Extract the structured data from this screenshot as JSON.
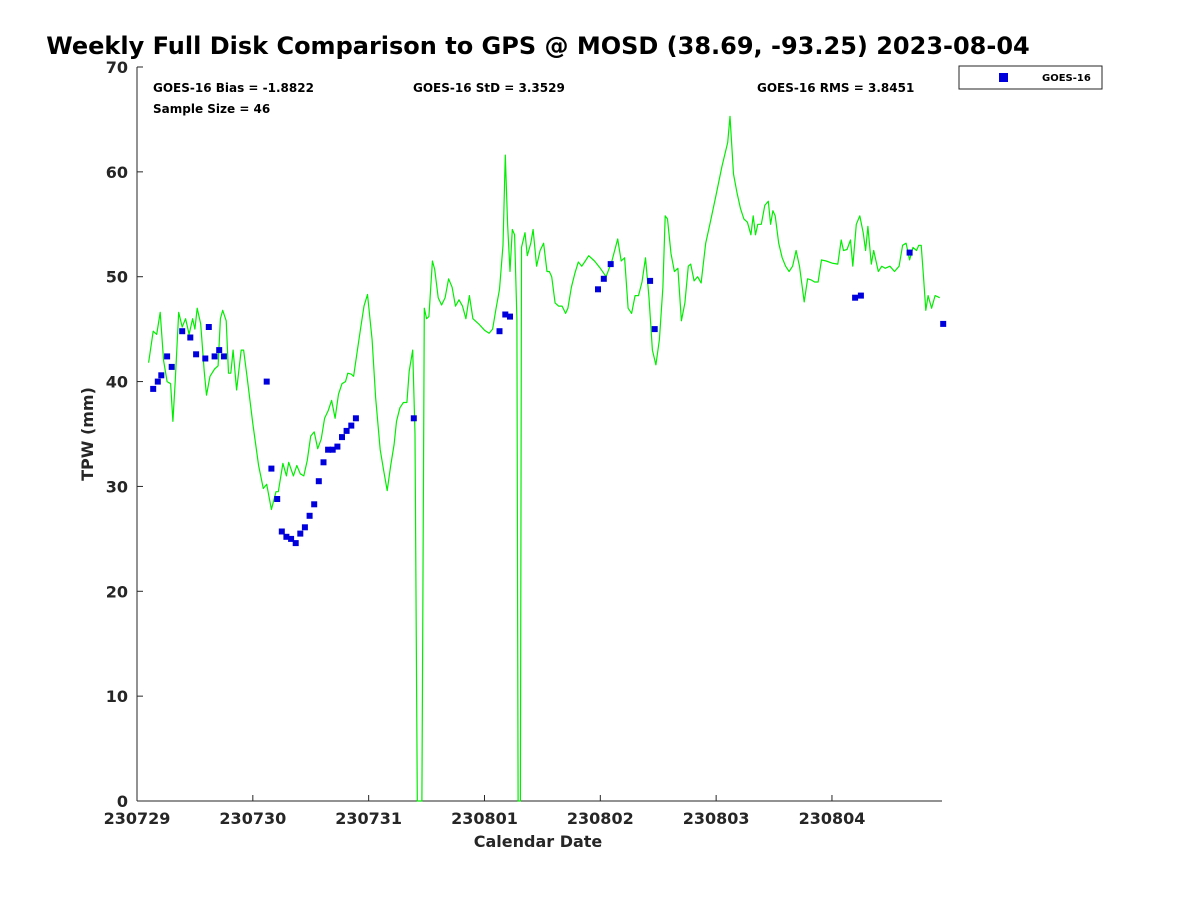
{
  "chart_data": {
    "type": "line+scatter",
    "title": "Weekly Full Disk Comparison to GPS @ MOSD (38.69, -93.25) 2023-08-04",
    "xlabel": "Calendar Date",
    "ylabel": "TPW (mm)",
    "xlim": [
      0,
      6.95
    ],
    "ylim": [
      0,
      70
    ],
    "x_ticks": [
      0,
      1,
      2,
      3,
      4,
      5,
      6
    ],
    "x_tick_labels": [
      "230729",
      "230730",
      "230731",
      "230801",
      "230802",
      "230803",
      "230804"
    ],
    "y_ticks": [
      0,
      10,
      20,
      30,
      40,
      50,
      60,
      70
    ],
    "y_tick_labels": [
      "0",
      "10",
      "20",
      "30",
      "40",
      "50",
      "60",
      "70"
    ],
    "grid": false,
    "legend": {
      "position": "top-right-outside",
      "entries": [
        "GOES-16"
      ]
    },
    "stats": {
      "bias": "GOES-16 Bias = -1.8822",
      "std": "GOES-16 StD = 3.3529",
      "rms": "GOES-16 RMS = 3.8451",
      "sample": "Sample Size = 46"
    },
    "series": [
      {
        "name": "GPS",
        "kind": "line",
        "color": "#00ee00",
        "points": [
          [
            0.1,
            41.8
          ],
          [
            0.14,
            44.8
          ],
          [
            0.17,
            44.5
          ],
          [
            0.2,
            46.6
          ],
          [
            0.23,
            42
          ],
          [
            0.26,
            40
          ],
          [
            0.29,
            39.8
          ],
          [
            0.31,
            36.2
          ],
          [
            0.33,
            40
          ],
          [
            0.36,
            46.6
          ],
          [
            0.39,
            45.2
          ],
          [
            0.42,
            46
          ],
          [
            0.45,
            44.5
          ],
          [
            0.48,
            46
          ],
          [
            0.5,
            45
          ],
          [
            0.52,
            47
          ],
          [
            0.55,
            45.5
          ],
          [
            0.58,
            41
          ],
          [
            0.6,
            38.7
          ],
          [
            0.63,
            40.5
          ],
          [
            0.67,
            41.2
          ],
          [
            0.7,
            41.5
          ],
          [
            0.72,
            46
          ],
          [
            0.74,
            46.8
          ],
          [
            0.77,
            45.8
          ],
          [
            0.79,
            40.8
          ],
          [
            0.81,
            40.8
          ],
          [
            0.83,
            43
          ],
          [
            0.86,
            39.2
          ],
          [
            0.9,
            43
          ],
          [
            0.92,
            43
          ],
          [
            0.95,
            40.5
          ],
          [
            1.0,
            36
          ],
          [
            1.05,
            32
          ],
          [
            1.09,
            29.8
          ],
          [
            1.12,
            30.2
          ],
          [
            1.16,
            27.8
          ],
          [
            1.2,
            29.5
          ],
          [
            1.22,
            29.5
          ],
          [
            1.26,
            32.2
          ],
          [
            1.29,
            31
          ],
          [
            1.31,
            32.3
          ],
          [
            1.35,
            31
          ],
          [
            1.38,
            32
          ],
          [
            1.41,
            31.2
          ],
          [
            1.44,
            31
          ],
          [
            1.47,
            32.5
          ],
          [
            1.5,
            34.8
          ],
          [
            1.53,
            35.2
          ],
          [
            1.56,
            33.6
          ],
          [
            1.59,
            34.5
          ],
          [
            1.62,
            36.5
          ],
          [
            1.65,
            37.2
          ],
          [
            1.68,
            38.2
          ],
          [
            1.71,
            36.5
          ],
          [
            1.74,
            38.8
          ],
          [
            1.77,
            39.8
          ],
          [
            1.8,
            40
          ],
          [
            1.82,
            40.8
          ],
          [
            1.85,
            40.7
          ],
          [
            1.87,
            40.5
          ],
          [
            1.9,
            42.8
          ],
          [
            1.93,
            45
          ],
          [
            1.96,
            47.2
          ],
          [
            1.99,
            48.3
          ],
          [
            2.03,
            44
          ],
          [
            2.06,
            38.5
          ],
          [
            2.1,
            33.5
          ],
          [
            2.13,
            31.5
          ],
          [
            2.16,
            29.6
          ],
          [
            2.19,
            32
          ],
          [
            2.22,
            34
          ],
          [
            2.24,
            36.2
          ],
          [
            2.27,
            37.5
          ],
          [
            2.3,
            38
          ],
          [
            2.33,
            38
          ],
          [
            2.35,
            41
          ],
          [
            2.38,
            43
          ],
          [
            2.4,
            35
          ],
          [
            2.42,
            0
          ],
          [
            2.46,
            0
          ],
          [
            2.48,
            47
          ],
          [
            2.5,
            46
          ],
          [
            2.52,
            46.2
          ],
          [
            2.55,
            51.5
          ],
          [
            2.57,
            50.7
          ],
          [
            2.6,
            48
          ],
          [
            2.63,
            47.3
          ],
          [
            2.66,
            48
          ],
          [
            2.69,
            49.8
          ],
          [
            2.72,
            49
          ],
          [
            2.75,
            47.2
          ],
          [
            2.78,
            47.8
          ],
          [
            2.81,
            47.2
          ],
          [
            2.84,
            46
          ],
          [
            2.87,
            48.2
          ],
          [
            2.9,
            46
          ],
          [
            2.95,
            45.5
          ],
          [
            3.0,
            44.9
          ],
          [
            3.04,
            44.6
          ],
          [
            3.07,
            45
          ],
          [
            3.1,
            47
          ],
          [
            3.13,
            48.8
          ],
          [
            3.16,
            53
          ],
          [
            3.18,
            61.6
          ],
          [
            3.2,
            55
          ],
          [
            3.22,
            50.5
          ],
          [
            3.24,
            54.5
          ],
          [
            3.26,
            54
          ],
          [
            3.28,
            46
          ],
          [
            3.29,
            0
          ],
          [
            3.31,
            0
          ],
          [
            3.32,
            52.8
          ],
          [
            3.35,
            54.2
          ],
          [
            3.37,
            52
          ],
          [
            3.4,
            53.2
          ],
          [
            3.42,
            54.5
          ],
          [
            3.45,
            51
          ],
          [
            3.48,
            52.5
          ],
          [
            3.51,
            53.2
          ],
          [
            3.54,
            50.5
          ],
          [
            3.56,
            50.5
          ],
          [
            3.58,
            50
          ],
          [
            3.61,
            47.5
          ],
          [
            3.64,
            47.2
          ],
          [
            3.67,
            47.2
          ],
          [
            3.7,
            46.5
          ],
          [
            3.72,
            47
          ],
          [
            3.75,
            49
          ],
          [
            3.78,
            50.3
          ],
          [
            3.81,
            51.4
          ],
          [
            3.84,
            51
          ],
          [
            3.87,
            51.5
          ],
          [
            3.9,
            52
          ],
          [
            3.95,
            51.5
          ],
          [
            4.0,
            50.8
          ],
          [
            4.05,
            50
          ],
          [
            4.1,
            51.5
          ],
          [
            4.15,
            53.6
          ],
          [
            4.18,
            51.5
          ],
          [
            4.21,
            51.8
          ],
          [
            4.24,
            47
          ],
          [
            4.27,
            46.5
          ],
          [
            4.3,
            48.2
          ],
          [
            4.33,
            48.2
          ],
          [
            4.36,
            49.5
          ],
          [
            4.39,
            51.8
          ],
          [
            4.42,
            48
          ],
          [
            4.45,
            43
          ],
          [
            4.48,
            41.6
          ],
          [
            4.51,
            44
          ],
          [
            4.54,
            49
          ],
          [
            4.56,
            55.8
          ],
          [
            4.58,
            55.5
          ],
          [
            4.61,
            52.2
          ],
          [
            4.64,
            50.5
          ],
          [
            4.67,
            50.8
          ],
          [
            4.7,
            45.8
          ],
          [
            4.73,
            47.5
          ],
          [
            4.76,
            51
          ],
          [
            4.78,
            51.2
          ],
          [
            4.81,
            49.6
          ],
          [
            4.84,
            50
          ],
          [
            4.87,
            49.4
          ],
          [
            4.91,
            53.2
          ],
          [
            4.95,
            55.2
          ],
          [
            5.0,
            57.8
          ],
          [
            5.05,
            60.5
          ],
          [
            5.1,
            62.8
          ],
          [
            5.12,
            65.3
          ],
          [
            5.15,
            59.8
          ],
          [
            5.18,
            58
          ],
          [
            5.21,
            56.5
          ],
          [
            5.24,
            55.5
          ],
          [
            5.27,
            55.2
          ],
          [
            5.3,
            54
          ],
          [
            5.32,
            55.8
          ],
          [
            5.34,
            54
          ],
          [
            5.36,
            55
          ],
          [
            5.39,
            55
          ],
          [
            5.42,
            56.8
          ],
          [
            5.45,
            57.2
          ],
          [
            5.47,
            55
          ],
          [
            5.49,
            56.3
          ],
          [
            5.51,
            55.8
          ],
          [
            5.54,
            53.2
          ],
          [
            5.57,
            51.8
          ],
          [
            5.6,
            51
          ],
          [
            5.63,
            50.5
          ],
          [
            5.66,
            51
          ],
          [
            5.69,
            52.5
          ],
          [
            5.72,
            51
          ],
          [
            5.76,
            47.6
          ],
          [
            5.79,
            49.8
          ],
          [
            5.82,
            49.7
          ],
          [
            5.85,
            49.5
          ],
          [
            5.88,
            49.5
          ],
          [
            5.91,
            51.6
          ],
          [
            5.95,
            51.5
          ],
          [
            6.0,
            51.3
          ],
          [
            6.05,
            51.2
          ],
          [
            6.08,
            53.5
          ],
          [
            6.1,
            52.5
          ],
          [
            6.13,
            52.6
          ],
          [
            6.16,
            53.5
          ],
          [
            6.18,
            51
          ],
          [
            6.21,
            55
          ],
          [
            6.24,
            55.8
          ],
          [
            6.27,
            54.2
          ],
          [
            6.29,
            52.5
          ],
          [
            6.31,
            54.8
          ],
          [
            6.34,
            51.2
          ],
          [
            6.36,
            52.5
          ],
          [
            6.38,
            51.5
          ],
          [
            6.4,
            50.5
          ],
          [
            6.43,
            51
          ],
          [
            6.46,
            50.8
          ],
          [
            6.5,
            51
          ],
          [
            6.54,
            50.5
          ],
          [
            6.58,
            51
          ],
          [
            6.61,
            53
          ],
          [
            6.64,
            53.2
          ],
          [
            6.67,
            51.6
          ],
          [
            6.7,
            52.8
          ],
          [
            6.73,
            52.5
          ],
          [
            6.75,
            53
          ],
          [
            6.77,
            53
          ],
          [
            6.79,
            50
          ],
          [
            6.81,
            46.8
          ],
          [
            6.83,
            48.2
          ],
          [
            6.86,
            47
          ],
          [
            6.89,
            48.2
          ],
          [
            6.93,
            48
          ]
        ]
      },
      {
        "name": "GOES-16",
        "kind": "scatter",
        "color": "#0000dd",
        "points": [
          [
            0.14,
            39.3
          ],
          [
            0.18,
            40
          ],
          [
            0.21,
            40.6
          ],
          [
            0.26,
            42.4
          ],
          [
            0.3,
            41.4
          ],
          [
            0.39,
            44.8
          ],
          [
            0.46,
            44.2
          ],
          [
            0.51,
            42.6
          ],
          [
            0.59,
            42.2
          ],
          [
            0.62,
            45.2
          ],
          [
            0.67,
            42.4
          ],
          [
            0.71,
            43
          ],
          [
            0.75,
            42.4
          ],
          [
            1.12,
            40
          ],
          [
            1.16,
            31.7
          ],
          [
            1.21,
            28.8
          ],
          [
            1.25,
            25.7
          ],
          [
            1.29,
            25.2
          ],
          [
            1.33,
            25
          ],
          [
            1.37,
            24.6
          ],
          [
            1.41,
            25.5
          ],
          [
            1.45,
            26.1
          ],
          [
            1.49,
            27.2
          ],
          [
            1.53,
            28.3
          ],
          [
            1.57,
            30.5
          ],
          [
            1.61,
            32.3
          ],
          [
            1.65,
            33.5
          ],
          [
            1.69,
            33.5
          ],
          [
            1.73,
            33.8
          ],
          [
            1.77,
            34.7
          ],
          [
            1.81,
            35.3
          ],
          [
            1.85,
            35.8
          ],
          [
            1.89,
            36.5
          ],
          [
            2.39,
            36.5
          ],
          [
            3.13,
            44.8
          ],
          [
            3.18,
            46.4
          ],
          [
            3.22,
            46.2
          ],
          [
            3.98,
            48.8
          ],
          [
            4.03,
            49.8
          ],
          [
            4.09,
            51.2
          ],
          [
            4.43,
            49.6
          ],
          [
            4.47,
            45
          ],
          [
            6.2,
            48
          ],
          [
            6.25,
            48.2
          ],
          [
            6.67,
            52.3
          ],
          [
            6.96,
            45.5
          ]
        ]
      }
    ]
  }
}
